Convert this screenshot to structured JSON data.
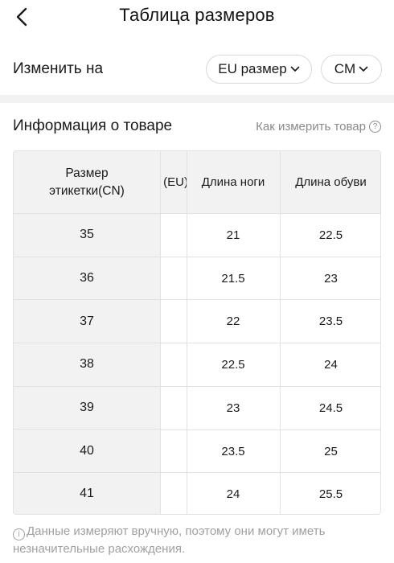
{
  "header": {
    "title": "Таблица размеров",
    "back_icon": "chevron-left-icon"
  },
  "switch_row": {
    "label": "Изменить на",
    "unit_system": {
      "label": "EU размер",
      "icon": "chevron-down-icon"
    },
    "measure_unit": {
      "label": "CM",
      "icon": "chevron-down-icon"
    }
  },
  "product_info": {
    "title": "Информация о товаре",
    "how_to_measure": "Как измерить товар",
    "help_icon": "question-circle-icon"
  },
  "table": {
    "sticky_header": "Размер этикетки(CN)",
    "partial_header": "(EU)",
    "headers": [
      "Длина ноги",
      "Длина обуви"
    ],
    "rows": [
      {
        "label": "35",
        "foot": "21",
        "shoe": "22.5"
      },
      {
        "label": "36",
        "foot": "21.5",
        "shoe": "23"
      },
      {
        "label": "37",
        "foot": "22",
        "shoe": "23.5"
      },
      {
        "label": "38",
        "foot": "22.5",
        "shoe": "24"
      },
      {
        "label": "39",
        "foot": "23",
        "shoe": "24.5"
      },
      {
        "label": "40",
        "foot": "23.5",
        "shoe": "25"
      },
      {
        "label": "41",
        "foot": "24",
        "shoe": "25.5"
      }
    ]
  },
  "note": {
    "icon": "info-circle-icon",
    "text": "Данные измеряют вручную, поэтому они могут иметь незначительные расхождения."
  },
  "colors": {
    "header_bg": "#f2f2f2",
    "border": "#e2e2e2",
    "muted_text": "#8a8a8a"
  }
}
